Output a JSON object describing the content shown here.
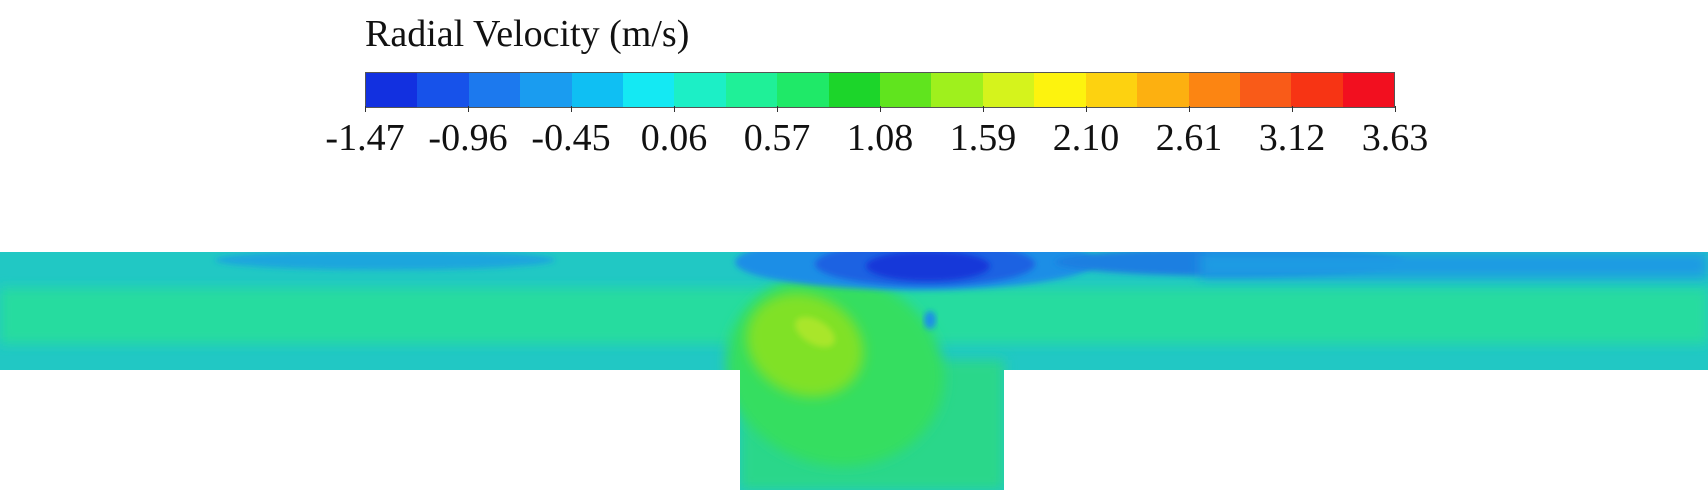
{
  "legend": {
    "title": "Radial Velocity (m/s)",
    "tick_labels": [
      "-1.47",
      "-0.96",
      "-0.45",
      "0.06",
      "0.57",
      "1.08",
      "1.59",
      "2.10",
      "2.61",
      "3.12",
      "3.63"
    ],
    "colors": [
      "#1230e0",
      "#1752ea",
      "#1c79ee",
      "#1a9cf0",
      "#0fbff3",
      "#14e9f3",
      "#1cefc6",
      "#1ff098",
      "#1fe968",
      "#1cd52a",
      "#60e41e",
      "#9ff01d",
      "#d5f31c",
      "#fdf30e",
      "#fdd210",
      "#fdb010",
      "#fc8512",
      "#f95b18",
      "#f73414",
      "#f20f1f"
    ]
  },
  "colors": {
    "background": "#20c7c5",
    "core": "#25ddaa",
    "inner_green": "#33e063",
    "lime": "#8ce41c",
    "blue_dark": "#1436dd",
    "blue_mid": "#1d73e4",
    "blue_light": "#1eb2e3"
  }
}
